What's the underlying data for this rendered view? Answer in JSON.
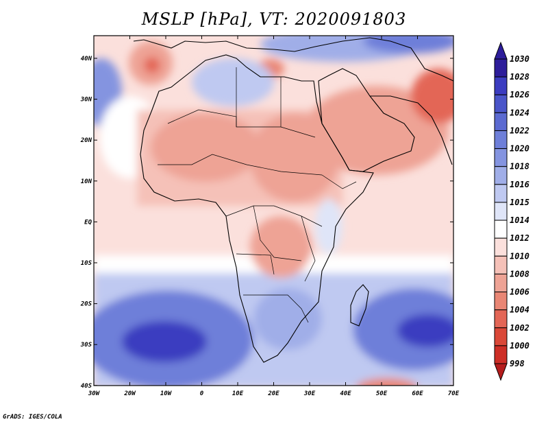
{
  "title": "MSLP [hPa], VT: 2020091803",
  "credit": "GrADS: IGES/COLA",
  "x_ticks": [
    "30W",
    "20W",
    "10W",
    "0",
    "10E",
    "20E",
    "30E",
    "40E",
    "50E",
    "60E",
    "70E"
  ],
  "y_ticks": [
    "40N",
    "30N",
    "20N",
    "10N",
    "EQ",
    "10S",
    "20S",
    "30S",
    "40S"
  ],
  "colorbar": {
    "levels": [
      "1030",
      "1028",
      "1026",
      "1024",
      "1022",
      "1020",
      "1018",
      "1016",
      "1015",
      "1014",
      "1012",
      "1010",
      "1008",
      "1006",
      "1004",
      "1002",
      "1000",
      "998"
    ],
    "colors": [
      "#2d1d9a",
      "#3b3cc0",
      "#4a55c9",
      "#5b6ad1",
      "#6e7fd9",
      "#8494e0",
      "#a0aee8",
      "#bfc9f1",
      "#dfe5f8",
      "#ffffff",
      "#fbe0dc",
      "#f5c1b8",
      "#eea395",
      "#e98674",
      "#e36656",
      "#da4838",
      "#cd2e26",
      "#b41c1c"
    ]
  },
  "colors": {
    "ocean_base": "#fbe0dc",
    "land_base": "#eea395",
    "high_deep": "#3b3cc0",
    "high_mid": "#6e7fd9",
    "high_light": "#bfc9f1",
    "low_deep": "#da4838",
    "low_mid": "#e98674"
  }
}
